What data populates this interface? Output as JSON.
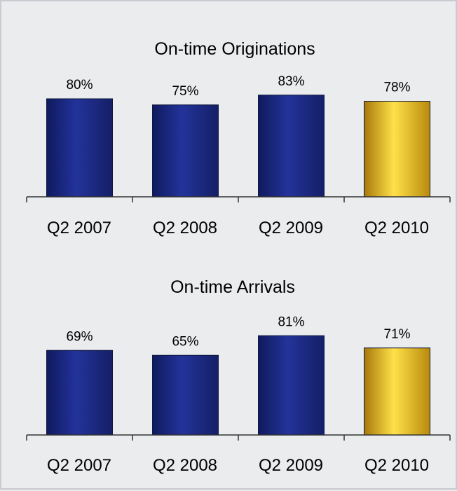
{
  "chart_data": [
    {
      "type": "bar",
      "title": "On-time Originations",
      "categories": [
        "Q2 2007",
        "Q2 2008",
        "Q2 2009",
        "Q2 2010"
      ],
      "values": [
        80,
        75,
        83,
        78
      ],
      "value_labels": [
        "80%",
        "75%",
        "83%",
        "78%"
      ],
      "unit": "%",
      "highlight_index": 3,
      "ylim": [
        0,
        100
      ],
      "grid": false,
      "colors": {
        "bar": "#1e2c8c",
        "highlight": "#f2c21a"
      }
    },
    {
      "type": "bar",
      "title": "On-time Arrivals",
      "categories": [
        "Q2 2007",
        "Q2 2008",
        "Q2 2009",
        "Q2 2010"
      ],
      "values": [
        69,
        65,
        81,
        71
      ],
      "value_labels": [
        "69%",
        "65%",
        "81%",
        "71%"
      ],
      "unit": "%",
      "highlight_index": 3,
      "ylim": [
        0,
        100
      ],
      "grid": false,
      "colors": {
        "bar": "#1e2c8c",
        "highlight": "#f2c21a"
      }
    }
  ]
}
